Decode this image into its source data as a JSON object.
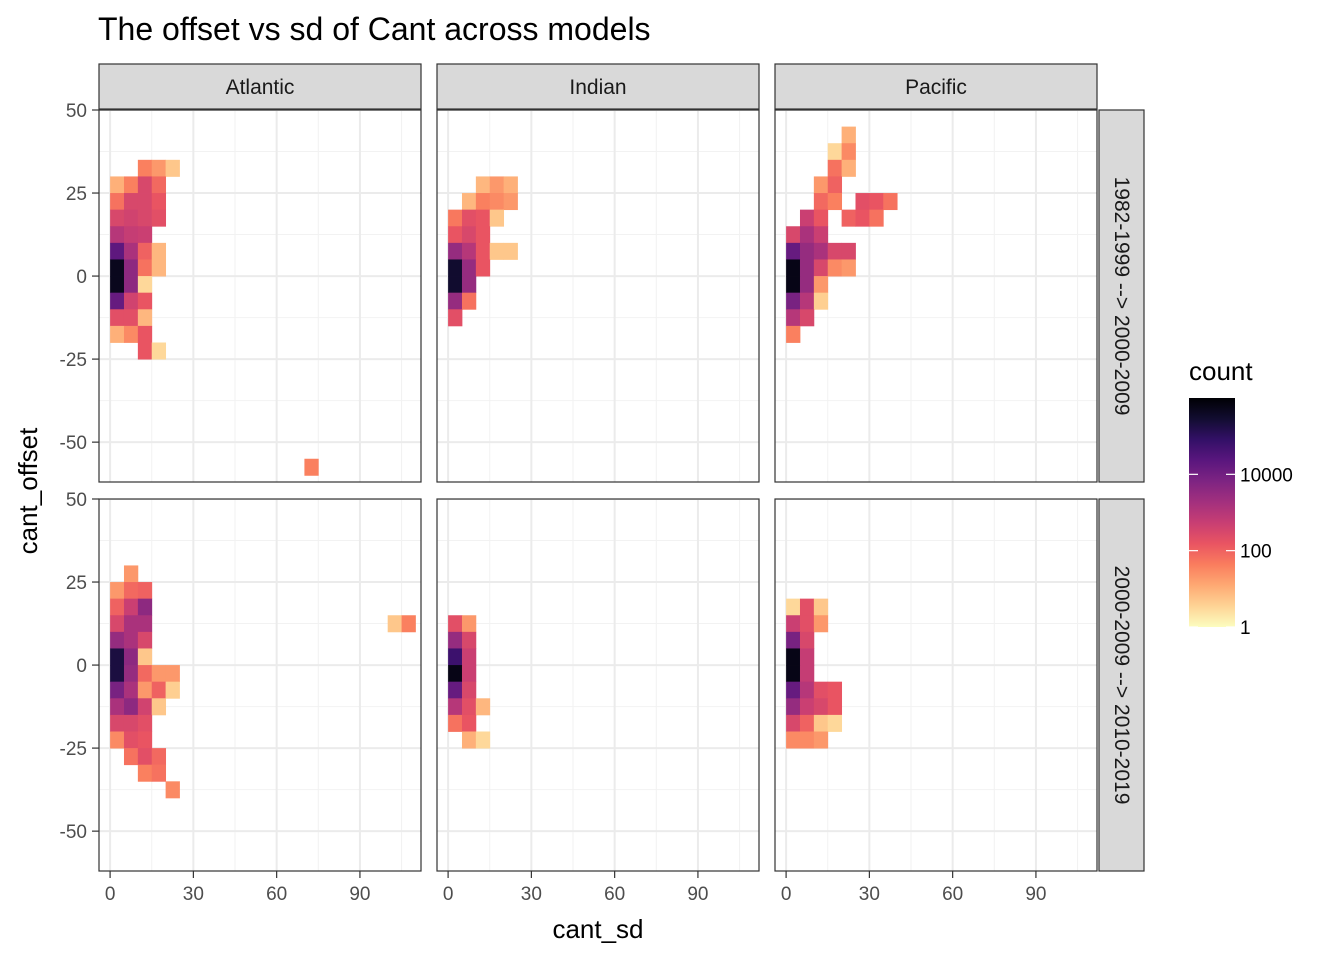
{
  "chart_data": {
    "type": "heatmap",
    "title": "The offset vs sd of Cant across models",
    "xlabel": "cant_sd",
    "ylabel": "cant_offset",
    "xlim": [
      -4,
      112
    ],
    "ylim": [
      -62,
      50
    ],
    "x_ticks": [
      0,
      30,
      60,
      90
    ],
    "y_ticks": [
      50,
      25,
      0,
      -25,
      -50
    ],
    "bin_width": 5,
    "bin_height": 5,
    "grid": true,
    "legend": {
      "title": "count",
      "position": "right",
      "scale": "log10",
      "labels": [
        {
          "value": 10000,
          "text": "10000"
        },
        {
          "value": 100,
          "text": "100"
        },
        {
          "value": 1,
          "text": "1"
        }
      ],
      "max": 1000000
    },
    "columns": [
      "Atlantic",
      "Indian",
      "Pacific"
    ],
    "rows": [
      "1982-1999 --> 2000-2009",
      "2000-2009 --> 2010-2019"
    ],
    "colors": [
      "#fcfdbf",
      "#fed395",
      "#fea973",
      "#fa7d5e",
      "#e95462",
      "#c83e73",
      "#a3307e",
      "#7e2482",
      "#5a167e",
      "#331067",
      "#120d31",
      "#000004"
    ],
    "panels": [
      {
        "row": 0,
        "col": 0,
        "cells": [
          [
            12.5,
            32.5,
            40
          ],
          [
            17.5,
            32.5,
            20
          ],
          [
            22.5,
            32.5,
            5
          ],
          [
            2.5,
            27.5,
            10
          ],
          [
            7.5,
            27.5,
            40
          ],
          [
            12.5,
            27.5,
            300
          ],
          [
            17.5,
            27.5,
            80
          ],
          [
            2.5,
            22.5,
            60
          ],
          [
            7.5,
            22.5,
            300
          ],
          [
            12.5,
            22.5,
            300
          ],
          [
            17.5,
            22.5,
            150
          ],
          [
            2.5,
            17.5,
            300
          ],
          [
            7.5,
            17.5,
            400
          ],
          [
            12.5,
            17.5,
            300
          ],
          [
            17.5,
            17.5,
            200
          ],
          [
            2.5,
            12.5,
            1000
          ],
          [
            7.5,
            12.5,
            600
          ],
          [
            12.5,
            12.5,
            500
          ],
          [
            2.5,
            7.5,
            20000
          ],
          [
            7.5,
            7.5,
            1500
          ],
          [
            12.5,
            7.5,
            100
          ],
          [
            17.5,
            7.5,
            8
          ],
          [
            2.5,
            2.5,
            500000
          ],
          [
            7.5,
            2.5,
            4000
          ],
          [
            12.5,
            2.5,
            60
          ],
          [
            17.5,
            2.5,
            8
          ],
          [
            2.5,
            -2.5,
            500000
          ],
          [
            7.5,
            -2.5,
            4000
          ],
          [
            12.5,
            -2.5,
            3
          ],
          [
            2.5,
            -7.5,
            15000
          ],
          [
            7.5,
            -7.5,
            400
          ],
          [
            12.5,
            -7.5,
            150
          ],
          [
            2.5,
            -12.5,
            200
          ],
          [
            7.5,
            -12.5,
            200
          ],
          [
            12.5,
            -12.5,
            8
          ],
          [
            2.5,
            -17.5,
            10
          ],
          [
            7.5,
            -17.5,
            30
          ],
          [
            12.5,
            -17.5,
            150
          ],
          [
            12.5,
            -22.5,
            150
          ],
          [
            17.5,
            -22.5,
            3
          ],
          [
            72.5,
            -57.5,
            40
          ]
        ]
      },
      {
        "row": 0,
        "col": 1,
        "cells": [
          [
            12.5,
            27.5,
            8
          ],
          [
            17.5,
            27.5,
            20
          ],
          [
            22.5,
            27.5,
            10
          ],
          [
            7.5,
            22.5,
            8
          ],
          [
            12.5,
            22.5,
            40
          ],
          [
            17.5,
            22.5,
            30
          ],
          [
            22.5,
            22.5,
            20
          ],
          [
            2.5,
            17.5,
            50
          ],
          [
            7.5,
            17.5,
            200
          ],
          [
            12.5,
            17.5,
            150
          ],
          [
            17.5,
            17.5,
            5
          ],
          [
            2.5,
            12.5,
            150
          ],
          [
            7.5,
            12.5,
            300
          ],
          [
            12.5,
            12.5,
            150
          ],
          [
            2.5,
            7.5,
            3000
          ],
          [
            7.5,
            7.5,
            1000
          ],
          [
            12.5,
            7.5,
            150
          ],
          [
            17.5,
            7.5,
            5
          ],
          [
            22.5,
            7.5,
            5
          ],
          [
            2.5,
            2.5,
            300000
          ],
          [
            7.5,
            2.5,
            3000
          ],
          [
            12.5,
            2.5,
            150
          ],
          [
            2.5,
            -2.5,
            300000
          ],
          [
            7.5,
            -2.5,
            3000
          ],
          [
            2.5,
            -7.5,
            3000
          ],
          [
            7.5,
            -7.5,
            60
          ],
          [
            2.5,
            -12.5,
            200
          ]
        ]
      },
      {
        "row": 0,
        "col": 2,
        "cells": [
          [
            22.5,
            42.5,
            10
          ],
          [
            17.5,
            37.5,
            3
          ],
          [
            22.5,
            37.5,
            30
          ],
          [
            17.5,
            32.5,
            60
          ],
          [
            22.5,
            32.5,
            10
          ],
          [
            12.5,
            27.5,
            20
          ],
          [
            17.5,
            27.5,
            100
          ],
          [
            12.5,
            22.5,
            80
          ],
          [
            17.5,
            22.5,
            40
          ],
          [
            27.5,
            22.5,
            200
          ],
          [
            32.5,
            22.5,
            150
          ],
          [
            37.5,
            22.5,
            60
          ],
          [
            7.5,
            17.5,
            500
          ],
          [
            12.5,
            17.5,
            150
          ],
          [
            22.5,
            17.5,
            100
          ],
          [
            27.5,
            17.5,
            150
          ],
          [
            32.5,
            17.5,
            60
          ],
          [
            2.5,
            12.5,
            300
          ],
          [
            7.5,
            12.5,
            1500
          ],
          [
            12.5,
            12.5,
            500
          ],
          [
            2.5,
            7.5,
            15000
          ],
          [
            7.5,
            7.5,
            3000
          ],
          [
            12.5,
            7.5,
            1500
          ],
          [
            17.5,
            7.5,
            300
          ],
          [
            22.5,
            7.5,
            300
          ],
          [
            2.5,
            2.5,
            600000
          ],
          [
            7.5,
            2.5,
            3000
          ],
          [
            12.5,
            2.5,
            300
          ],
          [
            17.5,
            2.5,
            30
          ],
          [
            22.5,
            2.5,
            20
          ],
          [
            2.5,
            -2.5,
            600000
          ],
          [
            7.5,
            -2.5,
            3000
          ],
          [
            12.5,
            -2.5,
            20
          ],
          [
            2.5,
            -7.5,
            8000
          ],
          [
            7.5,
            -7.5,
            1000
          ],
          [
            12.5,
            -7.5,
            4
          ],
          [
            2.5,
            -12.5,
            1000
          ],
          [
            7.5,
            -12.5,
            300
          ],
          [
            2.5,
            -17.5,
            40
          ]
        ]
      },
      {
        "row": 1,
        "col": 0,
        "cells": [
          [
            7.5,
            27.5,
            20
          ],
          [
            2.5,
            22.5,
            20
          ],
          [
            7.5,
            22.5,
            80
          ],
          [
            12.5,
            22.5,
            100
          ],
          [
            2.5,
            17.5,
            100
          ],
          [
            7.5,
            17.5,
            500
          ],
          [
            12.5,
            17.5,
            4000
          ],
          [
            2.5,
            12.5,
            300
          ],
          [
            7.5,
            12.5,
            1500
          ],
          [
            12.5,
            12.5,
            1500
          ],
          [
            2.5,
            7.5,
            3000
          ],
          [
            7.5,
            7.5,
            1500
          ],
          [
            12.5,
            7.5,
            300
          ],
          [
            2.5,
            2.5,
            200000
          ],
          [
            7.5,
            2.5,
            4000
          ],
          [
            12.5,
            2.5,
            5
          ],
          [
            2.5,
            -2.5,
            200000
          ],
          [
            7.5,
            -2.5,
            3000
          ],
          [
            12.5,
            -2.5,
            80
          ],
          [
            17.5,
            -2.5,
            20
          ],
          [
            22.5,
            -2.5,
            20
          ],
          [
            2.5,
            -7.5,
            8000
          ],
          [
            7.5,
            -7.5,
            1500
          ],
          [
            12.5,
            -7.5,
            20
          ],
          [
            17.5,
            -7.5,
            100
          ],
          [
            22.5,
            -7.5,
            4
          ],
          [
            2.5,
            -12.5,
            1500
          ],
          [
            7.5,
            -12.5,
            4000
          ],
          [
            12.5,
            -12.5,
            400
          ],
          [
            17.5,
            -12.5,
            5
          ],
          [
            2.5,
            -17.5,
            300
          ],
          [
            7.5,
            -17.5,
            300
          ],
          [
            12.5,
            -17.5,
            200
          ],
          [
            2.5,
            -22.5,
            30
          ],
          [
            7.5,
            -22.5,
            200
          ],
          [
            12.5,
            -22.5,
            150
          ],
          [
            7.5,
            -27.5,
            60
          ],
          [
            12.5,
            -27.5,
            200
          ],
          [
            17.5,
            -27.5,
            80
          ],
          [
            12.5,
            -32.5,
            40
          ],
          [
            17.5,
            -32.5,
            60
          ],
          [
            22.5,
            -37.5,
            30
          ],
          [
            102.5,
            12.5,
            5
          ],
          [
            107.5,
            12.5,
            40
          ]
        ]
      },
      {
        "row": 1,
        "col": 1,
        "cells": [
          [
            2.5,
            12.5,
            200
          ],
          [
            7.5,
            12.5,
            20
          ],
          [
            2.5,
            7.5,
            3000
          ],
          [
            7.5,
            7.5,
            300
          ],
          [
            2.5,
            2.5,
            60000
          ],
          [
            7.5,
            2.5,
            500
          ],
          [
            2.5,
            -2.5,
            600000
          ],
          [
            7.5,
            -2.5,
            500
          ],
          [
            2.5,
            -7.5,
            15000
          ],
          [
            7.5,
            -7.5,
            300
          ],
          [
            2.5,
            -12.5,
            1000
          ],
          [
            7.5,
            -12.5,
            200
          ],
          [
            12.5,
            -12.5,
            8
          ],
          [
            2.5,
            -17.5,
            60
          ],
          [
            7.5,
            -17.5,
            150
          ],
          [
            7.5,
            -22.5,
            10
          ],
          [
            12.5,
            -22.5,
            3
          ]
        ]
      },
      {
        "row": 1,
        "col": 2,
        "cells": [
          [
            2.5,
            17.5,
            3
          ],
          [
            7.5,
            17.5,
            200
          ],
          [
            12.5,
            17.5,
            5
          ],
          [
            2.5,
            12.5,
            500
          ],
          [
            7.5,
            12.5,
            200
          ],
          [
            12.5,
            12.5,
            20
          ],
          [
            2.5,
            7.5,
            8000
          ],
          [
            7.5,
            7.5,
            300
          ],
          [
            2.5,
            2.5,
            600000
          ],
          [
            7.5,
            2.5,
            600
          ],
          [
            2.5,
            -2.5,
            600000
          ],
          [
            7.5,
            -2.5,
            600
          ],
          [
            2.5,
            -7.5,
            15000
          ],
          [
            7.5,
            -7.5,
            1000
          ],
          [
            12.5,
            -7.5,
            200
          ],
          [
            17.5,
            -7.5,
            150
          ],
          [
            2.5,
            -12.5,
            3000
          ],
          [
            7.5,
            -12.5,
            500
          ],
          [
            12.5,
            -12.5,
            300
          ],
          [
            17.5,
            -12.5,
            150
          ],
          [
            2.5,
            -17.5,
            300
          ],
          [
            7.5,
            -17.5,
            100
          ],
          [
            12.5,
            -17.5,
            5
          ],
          [
            17.5,
            -17.5,
            3
          ],
          [
            2.5,
            -22.5,
            30
          ],
          [
            7.5,
            -22.5,
            30
          ],
          [
            12.5,
            -22.5,
            20
          ]
        ]
      }
    ]
  }
}
